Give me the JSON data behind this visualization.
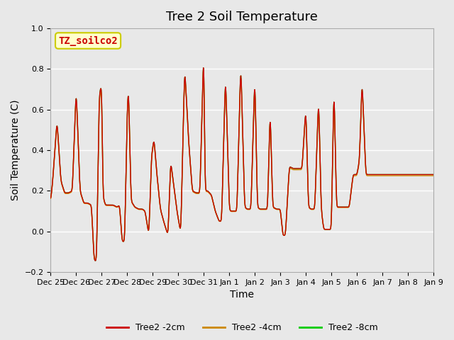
{
  "title": "Tree 2 Soil Temperature",
  "ylabel": "Soil Temperature (C)",
  "xlabel": "Time",
  "ylim": [
    -0.2,
    1.0
  ],
  "yticks": [
    -0.2,
    0.0,
    0.2,
    0.4,
    0.6,
    0.8,
    1.0
  ],
  "xtick_labels": [
    "Dec 25",
    "Dec 26",
    "Dec 27",
    "Dec 28",
    "Dec 29",
    "Dec 30",
    "Dec 31",
    "Jan 1",
    "Jan 2",
    "Jan 3",
    "Jan 4",
    "Jan 5",
    "Jan 6",
    "Jan 7",
    "Jan 8",
    "Jan 9"
  ],
  "line_colors": [
    "#cc0000",
    "#cc8800",
    "#00cc00"
  ],
  "line_labels": [
    "Tree2 -2cm",
    "Tree2 -4cm",
    "Tree2 -8cm"
  ],
  "background_color": "#e8e8e8",
  "plot_bg_color": "#e8e8e8",
  "grid_color": "#ffffff",
  "annotation_text": "TZ_soilco2",
  "annotation_bg": "#ffffcc",
  "annotation_border": "#cccc00",
  "annotation_text_color": "#cc0000",
  "title_fontsize": 13,
  "axis_label_fontsize": 10,
  "tick_fontsize": 8,
  "legend_fontsize": 9
}
